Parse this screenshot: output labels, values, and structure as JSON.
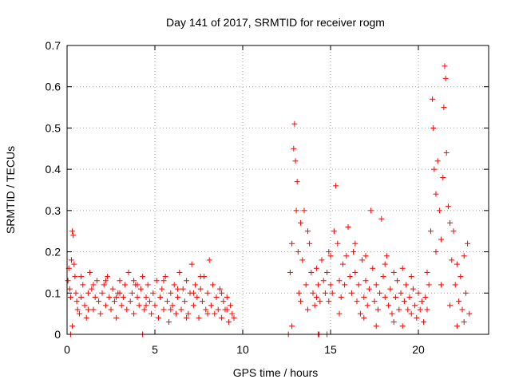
{
  "chart_data": {
    "type": "scatter",
    "title": "Day 141 of 2017, SRMTID for receiver rogm",
    "xlabel": "GPS time / hours",
    "ylabel": "SRMTID / TECUs",
    "xlim": [
      0,
      24
    ],
    "ylim": [
      0,
      0.7
    ],
    "x_ticks": [
      0,
      5,
      10,
      15,
      20
    ],
    "x_tick_labels": [
      "0",
      "5",
      "10",
      "15",
      "20"
    ],
    "y_ticks": [
      0,
      0.1,
      0.2,
      0.3,
      0.4,
      0.5,
      0.6,
      0.7
    ],
    "y_tick_labels": [
      "0",
      "0.1",
      "0.2",
      "0.3",
      "0.4",
      "0.5",
      "0.6",
      "0.7"
    ],
    "grid": true,
    "marker": "+",
    "color": "#ff0000",
    "series": [
      {
        "name": "SRMTID",
        "points": [
          [
            0.05,
            0.13
          ],
          [
            0.1,
            0.16
          ],
          [
            0.15,
            0.11
          ],
          [
            0.2,
            0.09
          ],
          [
            0.25,
            0.18
          ],
          [
            0.3,
            0.25
          ],
          [
            0.35,
            0.24
          ],
          [
            0.4,
            0.17
          ],
          [
            0.45,
            0.14
          ],
          [
            0.5,
            0.1
          ],
          [
            0.55,
            0.08
          ],
          [
            0.6,
            0.06
          ],
          [
            0.7,
            0.05
          ],
          [
            0.8,
            0.09
          ],
          [
            0.9,
            0.12
          ],
          [
            1.0,
            0.07
          ],
          [
            1.1,
            0.04
          ],
          [
            1.2,
            0.1
          ],
          [
            1.3,
            0.15
          ],
          [
            1.4,
            0.11
          ],
          [
            1.5,
            0.06
          ],
          [
            1.6,
            0.09
          ],
          [
            1.7,
            0.13
          ],
          [
            1.8,
            0.08
          ],
          [
            1.9,
            0.05
          ],
          [
            2.0,
            0.1
          ],
          [
            2.1,
            0.12
          ],
          [
            2.2,
            0.07
          ],
          [
            2.3,
            0.14
          ],
          [
            2.4,
            0.09
          ],
          [
            2.5,
            0.06
          ],
          [
            2.6,
            0.11
          ],
          [
            2.7,
            0.08
          ],
          [
            2.8,
            0.04
          ],
          [
            2.9,
            0.1
          ],
          [
            3.0,
            0.13
          ],
          [
            3.1,
            0.07
          ],
          [
            3.2,
            0.09
          ],
          [
            3.3,
            0.12
          ],
          [
            3.4,
            0.06
          ],
          [
            3.5,
            0.15
          ],
          [
            3.6,
            0.08
          ],
          [
            3.7,
            0.1
          ],
          [
            3.8,
            0.05
          ],
          [
            3.9,
            0.12
          ],
          [
            4.0,
            0.09
          ],
          [
            4.1,
            0.07
          ],
          [
            4.2,
            0.11
          ],
          [
            4.3,
            0.14
          ],
          [
            4.4,
            0.06
          ],
          [
            4.5,
            0.09
          ],
          [
            4.6,
            0.12
          ],
          [
            4.7,
            0.08
          ],
          [
            4.8,
            0.05
          ],
          [
            4.9,
            0.1
          ],
          [
            5.0,
            0.07
          ],
          [
            5.1,
            0.13
          ],
          [
            5.2,
            0.04
          ],
          [
            5.3,
            0.09
          ],
          [
            5.4,
            0.11
          ],
          [
            5.5,
            0.06
          ],
          [
            5.6,
            0.14
          ],
          [
            5.7,
            0.08
          ],
          [
            5.8,
            0.03
          ],
          [
            5.9,
            0.1
          ],
          [
            6.0,
            0.07
          ],
          [
            6.1,
            0.12
          ],
          [
            6.2,
            0.05
          ],
          [
            6.3,
            0.09
          ],
          [
            6.4,
            0.15
          ],
          [
            6.5,
            0.06
          ],
          [
            6.6,
            0.11
          ],
          [
            6.7,
            0.08
          ],
          [
            6.8,
            0.13
          ],
          [
            6.9,
            0.05
          ],
          [
            7.0,
            0.1
          ],
          [
            7.1,
            0.17
          ],
          [
            7.2,
            0.07
          ],
          [
            7.3,
            0.12
          ],
          [
            7.4,
            0.09
          ],
          [
            7.5,
            0.04
          ],
          [
            7.6,
            0.11
          ],
          [
            7.7,
            0.08
          ],
          [
            7.8,
            0.14
          ],
          [
            7.9,
            0.06
          ],
          [
            8.0,
            0.1
          ],
          [
            8.1,
            0.18
          ],
          [
            8.2,
            0.07
          ],
          [
            8.3,
            0.12
          ],
          [
            8.4,
            0.05
          ],
          [
            8.5,
            0.09
          ],
          [
            8.6,
            0.06
          ],
          [
            8.7,
            0.11
          ],
          [
            8.8,
            0.04
          ],
          [
            8.9,
            0.08
          ],
          [
            9.0,
            0.06
          ],
          [
            9.1,
            0.09
          ],
          [
            9.2,
            0.03
          ],
          [
            9.3,
            0.07
          ],
          [
            9.4,
            0.05
          ],
          [
            0.3,
            0.02
          ],
          [
            0.8,
            0.14
          ],
          [
            1.5,
            0.12
          ],
          [
            2.2,
            0.13
          ],
          [
            3.0,
            0.1
          ],
          [
            3.8,
            0.13
          ],
          [
            4.5,
            0.07
          ],
          [
            5.5,
            0.13
          ],
          [
            6.3,
            0.11
          ],
          [
            7.2,
            0.1
          ],
          [
            8.0,
            0.05
          ],
          [
            8.8,
            0.1
          ],
          [
            9.5,
            0.04
          ],
          [
            1.2,
            0.06
          ],
          [
            2.8,
            0.09
          ],
          [
            4.0,
            0.12
          ],
          [
            5.9,
            0.06
          ],
          [
            6.8,
            0.04
          ],
          [
            7.6,
            0.14
          ],
          [
            9.1,
            0.06
          ],
          [
            12.7,
            0.15
          ],
          [
            12.8,
            0.22
          ],
          [
            12.9,
            0.45
          ],
          [
            12.95,
            0.51
          ],
          [
            13.0,
            0.42
          ],
          [
            13.05,
            0.3
          ],
          [
            13.1,
            0.37
          ],
          [
            13.15,
            0.2
          ],
          [
            13.2,
            0.1
          ],
          [
            13.3,
            0.27
          ],
          [
            13.4,
            0.18
          ],
          [
            13.5,
            0.3
          ],
          [
            13.6,
            0.12
          ],
          [
            13.7,
            0.25
          ],
          [
            13.8,
            0.22
          ],
          [
            13.9,
            0.15
          ],
          [
            14.0,
            0.1
          ],
          [
            14.1,
            0.07
          ],
          [
            14.2,
            0.09
          ],
          [
            14.3,
            0.12
          ],
          [
            14.4,
            0.08
          ],
          [
            14.5,
            0.18
          ],
          [
            14.6,
            0.13
          ],
          [
            14.7,
            0.1
          ],
          [
            14.8,
            0.15
          ],
          [
            14.9,
            0.08
          ],
          [
            15.0,
            0.12
          ],
          [
            15.1,
            0.1
          ],
          [
            15.2,
            0.25
          ],
          [
            15.3,
            0.36
          ],
          [
            15.4,
            0.22
          ],
          [
            15.5,
            0.13
          ],
          [
            15.6,
            0.09
          ],
          [
            15.7,
            0.17
          ],
          [
            15.8,
            0.12
          ],
          [
            15.9,
            0.19
          ],
          [
            16.0,
            0.26
          ],
          [
            16.1,
            0.14
          ],
          [
            16.2,
            0.1
          ],
          [
            16.3,
            0.2
          ],
          [
            16.4,
            0.15
          ],
          [
            16.5,
            0.08
          ],
          [
            16.6,
            0.12
          ],
          [
            16.7,
            0.05
          ],
          [
            16.8,
            0.18
          ],
          [
            16.9,
            0.09
          ],
          [
            17.0,
            0.13
          ],
          [
            17.1,
            0.07
          ],
          [
            17.2,
            0.11
          ],
          [
            17.3,
            0.3
          ],
          [
            17.4,
            0.16
          ],
          [
            17.5,
            0.08
          ],
          [
            17.6,
            0.12
          ],
          [
            17.7,
            0.06
          ],
          [
            17.8,
            0.1
          ],
          [
            17.9,
            0.28
          ],
          [
            18.0,
            0.14
          ],
          [
            18.1,
            0.09
          ],
          [
            18.2,
            0.19
          ],
          [
            18.3,
            0.07
          ],
          [
            18.4,
            0.11
          ],
          [
            18.5,
            0.05
          ],
          [
            18.6,
            0.15
          ],
          [
            18.7,
            0.09
          ],
          [
            18.8,
            0.13
          ],
          [
            18.9,
            0.06
          ],
          [
            19.0,
            0.1
          ],
          [
            19.1,
            0.16
          ],
          [
            19.2,
            0.08
          ],
          [
            19.3,
            0.12
          ],
          [
            19.4,
            0.06
          ],
          [
            19.5,
            0.09
          ],
          [
            19.6,
            0.05
          ],
          [
            19.7,
            0.11
          ],
          [
            19.8,
            0.07
          ],
          [
            19.9,
            0.04
          ],
          [
            20.0,
            0.1
          ],
          [
            20.1,
            0.06
          ],
          [
            20.2,
            0.08
          ],
          [
            20.3,
            0.03
          ],
          [
            20.4,
            0.09
          ],
          [
            20.5,
            0.06
          ],
          [
            20.6,
            0.12
          ],
          [
            20.7,
            0.25
          ],
          [
            20.8,
            0.57
          ],
          [
            20.85,
            0.5
          ],
          [
            20.9,
            0.4
          ],
          [
            21.0,
            0.34
          ],
          [
            21.1,
            0.42
          ],
          [
            21.2,
            0.3
          ],
          [
            21.3,
            0.23
          ],
          [
            21.4,
            0.38
          ],
          [
            21.45,
            0.55
          ],
          [
            21.5,
            0.65
          ],
          [
            21.55,
            0.62
          ],
          [
            21.6,
            0.44
          ],
          [
            21.7,
            0.31
          ],
          [
            21.8,
            0.27
          ],
          [
            21.9,
            0.18
          ],
          [
            22.0,
            0.25
          ],
          [
            22.1,
            0.12
          ],
          [
            22.2,
            0.17
          ],
          [
            22.3,
            0.08
          ],
          [
            22.4,
            0.14
          ],
          [
            22.5,
            0.06
          ],
          [
            22.6,
            0.19
          ],
          [
            22.7,
            0.1
          ],
          [
            22.8,
            0.22
          ],
          [
            22.9,
            0.05
          ],
          [
            22.6,
            0.03
          ],
          [
            12.8,
            0.02
          ],
          [
            13.3,
            0.08
          ],
          [
            14.2,
            0.16
          ],
          [
            15.5,
            0.05
          ],
          [
            16.4,
            0.22
          ],
          [
            17.6,
            0.02
          ],
          [
            18.6,
            0.03
          ],
          [
            19.6,
            0.14
          ],
          [
            21.0,
            0.2
          ],
          [
            21.8,
            0.07
          ],
          [
            13.7,
            0.06
          ],
          [
            15.0,
            0.19
          ],
          [
            16.9,
            0.04
          ],
          [
            18.1,
            0.17
          ],
          [
            19.1,
            0.02
          ],
          [
            20.5,
            0.15
          ],
          [
            21.3,
            0.12
          ],
          [
            22.2,
            0.02
          ],
          [
            14.9,
            0.2
          ],
          [
            17.0,
            0.19
          ],
          [
            4.3,
            0.0
          ],
          [
            12.6,
            0.0
          ],
          [
            14.3,
            0.0
          ],
          [
            14.35,
            0.0
          ],
          [
            14.8,
            0.0
          ],
          [
            0.2,
            0.0
          ]
        ]
      }
    ]
  }
}
